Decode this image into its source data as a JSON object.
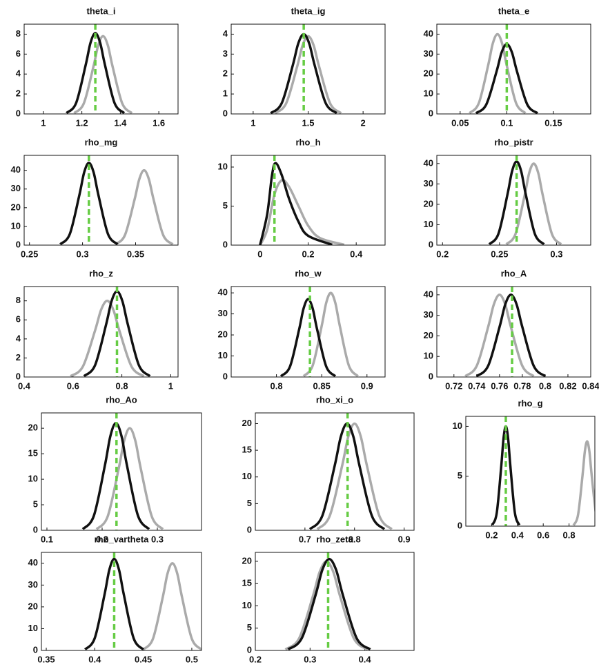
{
  "chart_data": [
    {
      "type": "line",
      "title": "theta_i",
      "xlim": [
        0.9,
        1.7
      ],
      "xticks": [
        1,
        1.2,
        1.4,
        1.6
      ],
      "ylim": [
        0,
        9
      ],
      "yticks": [
        0,
        2,
        4,
        6,
        8
      ],
      "series": [
        {
          "color": "#aaaaaa",
          "x": [
            1.16,
            1.21,
            1.26,
            1.285,
            1.31,
            1.335,
            1.36,
            1.41,
            1.46
          ],
          "values": [
            0.09,
            1.05,
            4.73,
            6.88,
            7.8,
            6.88,
            4.73,
            1.05,
            0.09
          ]
        },
        {
          "color": "#111111",
          "x": [
            1.12,
            1.17,
            1.22,
            1.245,
            1.27,
            1.295,
            1.32,
            1.37,
            1.42
          ],
          "values": [
            0.09,
            1.09,
            4.92,
            7.14,
            8.1,
            7.14,
            4.92,
            1.09,
            0.09
          ]
        }
      ],
      "vline": 1.27,
      "vline_color": "#66cc44"
    },
    {
      "type": "line",
      "title": "theta_ig",
      "xlim": [
        0.8,
        2.2
      ],
      "xticks": [
        1,
        1.5,
        2
      ],
      "ylim": [
        0,
        4.5
      ],
      "yticks": [
        0,
        1,
        2,
        3,
        4
      ],
      "series": [
        {
          "color": "#aaaaaa",
          "x": [
            1.2,
            1.3,
            1.4,
            1.45,
            1.5,
            1.55,
            1.6,
            1.7,
            1.8
          ],
          "values": [
            0.04,
            0.53,
            2.37,
            3.44,
            3.9,
            3.44,
            2.37,
            0.53,
            0.04
          ]
        },
        {
          "color": "#111111",
          "x": [
            1.16,
            1.26,
            1.36,
            1.41,
            1.46,
            1.51,
            1.56,
            1.66,
            1.76
          ],
          "values": [
            0.04,
            0.54,
            2.43,
            3.53,
            4,
            3.53,
            2.43,
            0.54,
            0.04
          ]
        }
      ],
      "vline": 1.46,
      "vline_color": "#66cc44"
    },
    {
      "type": "line",
      "title": "theta_e",
      "xlim": [
        0.025,
        0.19
      ],
      "xticks": [
        0.05,
        0.1,
        0.15
      ],
      "ylim": [
        0,
        45
      ],
      "yticks": [
        0,
        10,
        20,
        30,
        40
      ],
      "series": [
        {
          "color": "#aaaaaa",
          "x": [
            0.06,
            0.07,
            0.08,
            0.085,
            0.09,
            0.095,
            0.1,
            0.11,
            0.12
          ],
          "values": [
            0.44,
            5.4,
            24.3,
            35.3,
            40,
            35.3,
            24.3,
            5.4,
            0.44
          ]
        },
        {
          "color": "#111111",
          "x": [
            0.067,
            0.078,
            0.089,
            0.0945,
            0.1,
            0.1055,
            0.111,
            0.122,
            0.133
          ],
          "values": [
            0.39,
            4.7,
            21.2,
            30.9,
            35,
            30.9,
            21.2,
            4.7,
            0.39
          ]
        }
      ],
      "vline": 0.1,
      "vline_color": "#66cc44"
    },
    {
      "type": "line",
      "title": "rho_mg",
      "xlim": [
        0.245,
        0.39
      ],
      "xticks": [
        0.25,
        0.3,
        0.35
      ],
      "ylim": [
        0,
        48
      ],
      "yticks": [
        0,
        10,
        20,
        30,
        40
      ],
      "series": [
        {
          "color": "#aaaaaa",
          "x": [
            0.331,
            0.34,
            0.349,
            0.3535,
            0.358,
            0.3625,
            0.367,
            0.376,
            0.385
          ],
          "values": [
            0.44,
            5.4,
            24.3,
            35.3,
            40,
            35.3,
            24.3,
            5.4,
            0.44
          ]
        },
        {
          "color": "#111111",
          "x": [
            0.279,
            0.288,
            0.297,
            0.3015,
            0.306,
            0.3105,
            0.315,
            0.324,
            0.333
          ],
          "values": [
            0.48,
            5.9,
            26.7,
            38.8,
            44,
            38.8,
            26.7,
            5.9,
            0.48
          ]
        }
      ],
      "vline": 0.306,
      "vline_color": "#66cc44"
    },
    {
      "type": "line",
      "title": "rho_h",
      "xlim": [
        -0.12,
        0.52
      ],
      "xticks": [
        0,
        0.2,
        0.4
      ],
      "ylim": [
        0,
        11.5
      ],
      "yticks": [
        0,
        5,
        10
      ],
      "series": [
        {
          "color": "#aaaaaa",
          "x": [
            0,
            0.03,
            0.06,
            0.09,
            0.12,
            0.16,
            0.2,
            0.25,
            0.35
          ],
          "values": [
            0,
            2,
            6.5,
            8.3,
            7.5,
            5,
            2.5,
            0.9,
            0.05
          ]
        },
        {
          "color": "#111111",
          "x": [
            0,
            0.03,
            0.05,
            0.065,
            0.09,
            0.12,
            0.16,
            0.2,
            0.3
          ],
          "values": [
            0,
            4,
            9,
            10.5,
            9,
            6,
            3,
            1.2,
            0.05
          ]
        }
      ],
      "vline": 0.06,
      "vline_color": "#66cc44"
    },
    {
      "type": "line",
      "title": "rho_pistr",
      "xlim": [
        0.195,
        0.33
      ],
      "xticks": [
        0.2,
        0.25,
        0.3
      ],
      "ylim": [
        0,
        44
      ],
      "yticks": [
        0,
        10,
        20,
        30,
        40
      ],
      "series": [
        {
          "color": "#aaaaaa",
          "x": [
            0.256,
            0.264,
            0.272,
            0.276,
            0.28,
            0.284,
            0.288,
            0.296,
            0.304
          ],
          "values": [
            0.44,
            5.4,
            24.3,
            35.3,
            40,
            35.3,
            24.3,
            5.4,
            0.44
          ]
        },
        {
          "color": "#111111",
          "x": [
            0.241,
            0.249,
            0.257,
            0.261,
            0.265,
            0.269,
            0.273,
            0.281,
            0.289
          ],
          "values": [
            0.45,
            5.5,
            24.9,
            36.2,
            41,
            36.2,
            24.9,
            5.5,
            0.45
          ]
        }
      ],
      "vline": 0.265,
      "vline_color": "#66cc44"
    },
    {
      "type": "line",
      "title": "rho_z",
      "xlim": [
        0.4,
        1.03
      ],
      "xticks": [
        0.4,
        0.6,
        0.8,
        1
      ],
      "ylim": [
        0,
        9.5
      ],
      "yticks": [
        0,
        2,
        4,
        6,
        8
      ],
      "series": [
        {
          "color": "#aaaaaa",
          "x": [
            0.59,
            0.64,
            0.69,
            0.715,
            0.74,
            0.765,
            0.79,
            0.84,
            0.89
          ],
          "values": [
            0.09,
            1.08,
            4.86,
            7.06,
            8,
            7.06,
            4.86,
            1.08,
            0.09
          ]
        },
        {
          "color": "#111111",
          "x": [
            0.645,
            0.69,
            0.735,
            0.7575,
            0.78,
            0.8025,
            0.825,
            0.87,
            0.915
          ],
          "values": [
            0.1,
            1.22,
            5.46,
            7.94,
            9,
            7.94,
            5.46,
            1.22,
            0.1
          ]
        }
      ],
      "vline": 0.78,
      "vline_color": "#66cc44"
    },
    {
      "type": "line",
      "title": "rho_w",
      "xlim": [
        0.75,
        0.92
      ],
      "xticks": [
        0.8,
        0.85,
        0.9
      ],
      "ylim": [
        0,
        43
      ],
      "yticks": [
        0,
        10,
        20,
        30,
        40
      ],
      "series": [
        {
          "color": "#aaaaaa",
          "x": [
            0.83,
            0.84,
            0.85,
            0.855,
            0.86,
            0.865,
            0.87,
            0.88,
            0.89
          ],
          "values": [
            0.44,
            5.4,
            24.3,
            35.3,
            40,
            35.3,
            24.3,
            5.4,
            0.44
          ]
        },
        {
          "color": "#111111",
          "x": [
            0.805,
            0.815,
            0.825,
            0.83,
            0.835,
            0.84,
            0.845,
            0.855,
            0.865
          ],
          "values": [
            0.41,
            5,
            22.5,
            32.6,
            37,
            32.6,
            22.5,
            5,
            0.41
          ]
        }
      ],
      "vline": 0.837,
      "vline_color": "#66cc44"
    },
    {
      "type": "line",
      "title": "rho_A",
      "xlim": [
        0.705,
        0.84
      ],
      "xticks": [
        0.72,
        0.74,
        0.76,
        0.78,
        0.8,
        0.82,
        0.84
      ],
      "ylim": [
        0,
        44
      ],
      "yticks": [
        0,
        10,
        20,
        30,
        40
      ],
      "series": [
        {
          "color": "#aaaaaa",
          "x": [
            0.73,
            0.74,
            0.75,
            0.755,
            0.76,
            0.765,
            0.77,
            0.78,
            0.79
          ],
          "values": [
            0.44,
            5.4,
            24.3,
            35.3,
            40,
            35.3,
            24.3,
            5.4,
            0.44
          ]
        },
        {
          "color": "#111111",
          "x": [
            0.74,
            0.75,
            0.76,
            0.765,
            0.77,
            0.775,
            0.78,
            0.79,
            0.8
          ],
          "values": [
            0.44,
            5.4,
            24.3,
            35.3,
            40,
            35.3,
            24.3,
            5.4,
            0.44
          ]
        }
      ],
      "vline": 0.771,
      "vline_color": "#66cc44"
    },
    {
      "type": "line",
      "title": "rho_Ao",
      "xlim": [
        0.09,
        0.38
      ],
      "xticks": [
        0.1,
        0.2,
        0.3
      ],
      "ylim": [
        0,
        23
      ],
      "yticks": [
        0,
        5,
        10,
        15,
        20
      ],
      "series": [
        {
          "color": "#aaaaaa",
          "x": [
            0.19,
            0.21,
            0.23,
            0.24,
            0.25,
            0.26,
            0.27,
            0.29,
            0.31
          ],
          "values": [
            0.22,
            2.7,
            12.1,
            17.6,
            20,
            17.6,
            12.1,
            2.7,
            0.22
          ]
        },
        {
          "color": "#111111",
          "x": [
            0.165,
            0.185,
            0.205,
            0.215,
            0.225,
            0.235,
            0.245,
            0.265,
            0.285
          ],
          "values": [
            0.23,
            2.84,
            12.7,
            18.5,
            21,
            18.5,
            12.7,
            2.84,
            0.23
          ]
        }
      ],
      "vline": 0.226,
      "vline_color": "#66cc44"
    },
    {
      "type": "line",
      "title": "rho_xi_o",
      "xlim": [
        0.6,
        0.92
      ],
      "xticks": [
        0.7,
        0.8,
        0.9
      ],
      "ylim": [
        0,
        22
      ],
      "yticks": [
        0,
        5,
        10,
        15,
        20
      ],
      "series": [
        {
          "color": "#aaaaaa",
          "x": [
            0.725,
            0.75,
            0.775,
            0.7875,
            0.8,
            0.8125,
            0.825,
            0.85,
            0.875
          ],
          "values": [
            0.22,
            2.7,
            12.1,
            17.6,
            20,
            17.6,
            12.1,
            2.7,
            0.22
          ]
        },
        {
          "color": "#111111",
          "x": [
            0.71,
            0.735,
            0.76,
            0.7725,
            0.785,
            0.7975,
            0.81,
            0.835,
            0.86
          ],
          "values": [
            0.22,
            2.7,
            12.1,
            17.6,
            20,
            17.6,
            12.1,
            2.7,
            0.22
          ]
        }
      ],
      "vline": 0.786,
      "vline_color": "#66cc44"
    },
    {
      "type": "line",
      "title": "rho_g",
      "xlim": [
        0,
        1
      ],
      "xticks": [
        0.2,
        0.4,
        0.6,
        0.8
      ],
      "ylim": [
        0,
        11
      ],
      "yticks": [
        0,
        5,
        10
      ],
      "series": [
        {
          "color": "#aaaaaa",
          "x": [
            0.835,
            0.87,
            0.905,
            0.9225,
            0.94,
            0.9575,
            0.975,
            1.01,
            1.045
          ],
          "values": [
            0.09,
            1.15,
            5.16,
            7.5,
            8.5,
            7.5,
            5.16,
            1.15,
            0.09
          ]
        },
        {
          "color": "#111111",
          "x": [
            0.205,
            0.24,
            0.275,
            0.2925,
            0.31,
            0.3275,
            0.345,
            0.38,
            0.415
          ],
          "values": [
            0.11,
            1.35,
            6.07,
            8.82,
            10,
            8.82,
            6.07,
            1.35,
            0.11
          ]
        }
      ],
      "vline": 0.31,
      "vline_color": "#66cc44"
    },
    {
      "type": "line",
      "title": "rho_vartheta",
      "xlim": [
        0.345,
        0.51
      ],
      "xticks": [
        0.35,
        0.4,
        0.45,
        0.5
      ],
      "ylim": [
        0,
        45
      ],
      "yticks": [
        0,
        10,
        20,
        30,
        40
      ],
      "series": [
        {
          "color": "#aaaaaa",
          "x": [
            0.45,
            0.46,
            0.47,
            0.475,
            0.48,
            0.485,
            0.49,
            0.5,
            0.51
          ],
          "values": [
            0.44,
            5.4,
            24.3,
            35.3,
            40,
            35.3,
            24.3,
            5.4,
            0.44
          ]
        },
        {
          "color": "#111111",
          "x": [
            0.39,
            0.4,
            0.41,
            0.415,
            0.42,
            0.425,
            0.43,
            0.44,
            0.45
          ],
          "values": [
            0.46,
            5.67,
            25.5,
            37,
            42,
            37,
            25.5,
            5.67,
            0.46
          ]
        }
      ],
      "vline": 0.42,
      "vline_color": "#66cc44"
    },
    {
      "type": "line",
      "title": "rho_zeta",
      "xlim": [
        0.2,
        0.49
      ],
      "xticks": [
        0.2,
        0.3,
        0.4
      ],
      "ylim": [
        0,
        22
      ],
      "yticks": [
        0,
        5,
        10,
        15,
        20
      ],
      "series": [
        {
          "color": "#aaaaaa",
          "x": [
            0.255,
            0.28,
            0.305,
            0.3175,
            0.33,
            0.3425,
            0.355,
            0.38,
            0.405
          ],
          "values": [
            0.22,
            2.7,
            12.1,
            17.6,
            20,
            17.6,
            12.1,
            2.7,
            0.22
          ]
        },
        {
          "color": "#111111",
          "x": [
            0.26,
            0.285,
            0.31,
            0.3225,
            0.335,
            0.3475,
            0.36,
            0.385,
            0.41
          ],
          "values": [
            0.23,
            2.77,
            12.4,
            18.1,
            20.5,
            18.1,
            12.4,
            2.77,
            0.23
          ]
        }
      ],
      "vline": 0.333,
      "vline_color": "#66cc44"
    }
  ]
}
